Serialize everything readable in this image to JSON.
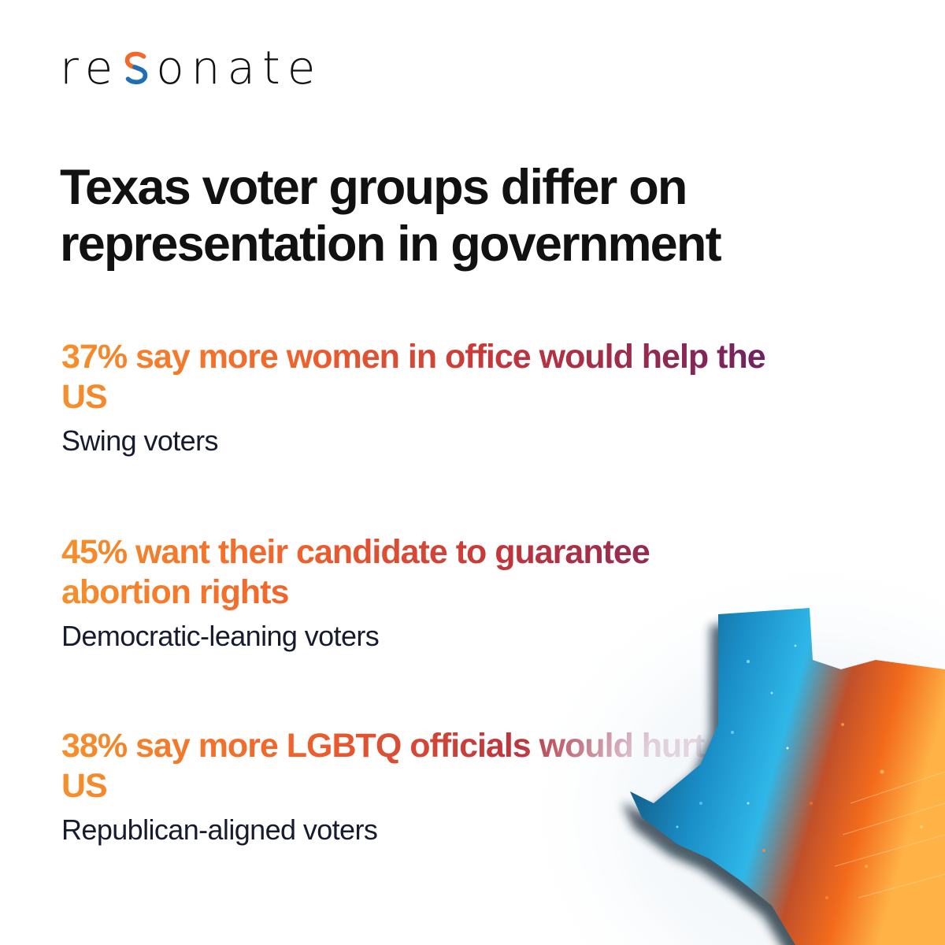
{
  "brand": {
    "logo_text_before": "re",
    "logo_text_after": "onate",
    "logo_full": "resonate",
    "accent_orange": "#f26a2b",
    "accent_blue": "#1f6fb8"
  },
  "headline": "Texas voter groups differ on representation in government",
  "stats": [
    {
      "title": "37% say more women in office would help the US",
      "group": "Swing voters"
    },
    {
      "title": "45% want their candidate to guarantee abortion rights",
      "group": "Democratic-leaning voters"
    },
    {
      "title": "38% say more LGBTQ officials would hurt the US",
      "group": "Republican-aligned voters"
    }
  ],
  "colors": {
    "gradient": [
      "#f5902b",
      "#f2632b",
      "#c2363c",
      "#6d2160"
    ],
    "text_dark": "#111111",
    "subtext": "#161b2e"
  },
  "image": {
    "icon": "texas-map-illustration"
  }
}
